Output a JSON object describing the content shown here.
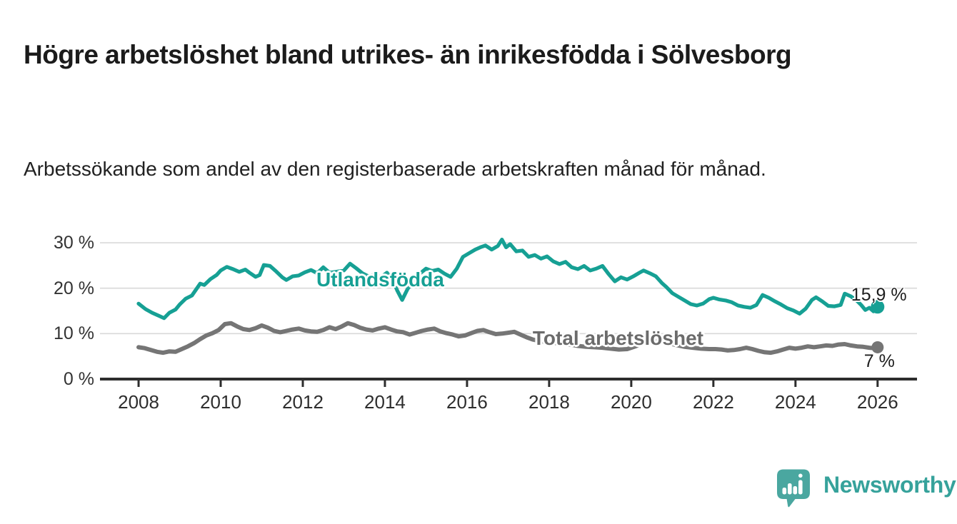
{
  "title": "Högre arbetslöshet bland utrikes- än inrikesfödda i Sölvesborg",
  "subtitle": "Arbetssökande som andel av den registerbaserade arbetskraften månad för månad.",
  "colors": {
    "teal_line": "#16A094",
    "gray_line": "#757575",
    "gridline": "#d9d9d9",
    "axis": "#2d2d2d",
    "text_dark": "#1d1d1d",
    "logo_teal": "#4AA7A0",
    "logo_text_teal": "#36A29B"
  },
  "logo": {
    "text": "Newsworthy",
    "icon": "newsworthy-speech-bubble-bar-chart-icon"
  },
  "chart_data": {
    "type": "line",
    "title": "Högre arbetslöshet bland utrikes- än inrikesfödda i Sölvesborg",
    "subtitle": "Arbetssökande som andel av den registerbaserade arbetskraften månad för månad.",
    "xlabel": "",
    "ylabel": "",
    "grid": true,
    "legend_position": "inline-annotations",
    "xlim": [
      2007.06,
      2026.96
    ],
    "ylim": [
      0,
      32
    ],
    "xticks": [
      2008,
      2010,
      2012,
      2014,
      2016,
      2018,
      2020,
      2022,
      2024,
      2026
    ],
    "yticks_values": [
      0,
      10,
      20,
      30
    ],
    "yticks_labels": [
      "0 %",
      "10 %",
      "20 %",
      "30 %"
    ],
    "annotations": [
      {
        "label": "Utlandsfödda",
        "x": 2012.33,
        "y": 21.7,
        "series": 0
      },
      {
        "label": "Total arbetslöshet",
        "x": 2017.6,
        "y": 8.8,
        "series": 1
      }
    ],
    "series": [
      {
        "name": "Utlandsfödda",
        "color": "#16A094",
        "end_label": "15,9 %",
        "end_value": 15.9,
        "points": [
          [
            2008.0,
            16.6
          ],
          [
            2008.17,
            15.4
          ],
          [
            2008.33,
            14.6
          ],
          [
            2008.5,
            13.9
          ],
          [
            2008.62,
            13.4
          ],
          [
            2008.75,
            14.6
          ],
          [
            2008.9,
            15.3
          ],
          [
            2009.0,
            16.4
          ],
          [
            2009.15,
            17.7
          ],
          [
            2009.3,
            18.4
          ],
          [
            2009.4,
            19.7
          ],
          [
            2009.5,
            21.0
          ],
          [
            2009.6,
            20.7
          ],
          [
            2009.75,
            22.0
          ],
          [
            2009.9,
            22.9
          ],
          [
            2010.0,
            23.9
          ],
          [
            2010.15,
            24.7
          ],
          [
            2010.3,
            24.2
          ],
          [
            2010.45,
            23.6
          ],
          [
            2010.6,
            24.1
          ],
          [
            2010.7,
            23.4
          ],
          [
            2010.85,
            22.5
          ],
          [
            2010.95,
            22.9
          ],
          [
            2011.05,
            25.1
          ],
          [
            2011.2,
            24.9
          ],
          [
            2011.35,
            23.7
          ],
          [
            2011.5,
            22.4
          ],
          [
            2011.6,
            21.8
          ],
          [
            2011.75,
            22.6
          ],
          [
            2011.9,
            22.8
          ],
          [
            2012.05,
            23.5
          ],
          [
            2012.2,
            24.0
          ],
          [
            2012.35,
            23.3
          ],
          [
            2012.5,
            24.6
          ],
          [
            2012.65,
            23.4
          ],
          [
            2012.8,
            23.6
          ],
          [
            2013.0,
            23.9
          ],
          [
            2013.15,
            25.4
          ],
          [
            2013.3,
            24.4
          ],
          [
            2013.45,
            23.3
          ],
          [
            2013.6,
            22.6
          ],
          [
            2013.75,
            23.0
          ],
          [
            2013.9,
            22.4
          ],
          [
            2014.05,
            23.4
          ],
          [
            2014.2,
            21.6
          ],
          [
            2014.3,
            19.5
          ],
          [
            2014.42,
            17.4
          ],
          [
            2014.55,
            19.8
          ],
          [
            2014.7,
            21.6
          ],
          [
            2014.85,
            23.2
          ],
          [
            2015.0,
            24.3
          ],
          [
            2015.15,
            23.8
          ],
          [
            2015.3,
            24.1
          ],
          [
            2015.45,
            23.2
          ],
          [
            2015.6,
            22.5
          ],
          [
            2015.75,
            24.3
          ],
          [
            2015.9,
            26.9
          ],
          [
            2016.05,
            27.7
          ],
          [
            2016.2,
            28.5
          ],
          [
            2016.35,
            29.1
          ],
          [
            2016.45,
            29.4
          ],
          [
            2016.6,
            28.5
          ],
          [
            2016.75,
            29.3
          ],
          [
            2016.85,
            30.7
          ],
          [
            2016.95,
            29.0
          ],
          [
            2017.05,
            29.7
          ],
          [
            2017.2,
            28.1
          ],
          [
            2017.35,
            28.3
          ],
          [
            2017.5,
            26.9
          ],
          [
            2017.65,
            27.3
          ],
          [
            2017.8,
            26.5
          ],
          [
            2017.95,
            27.0
          ],
          [
            2018.1,
            25.9
          ],
          [
            2018.25,
            25.3
          ],
          [
            2018.4,
            25.8
          ],
          [
            2018.55,
            24.6
          ],
          [
            2018.7,
            24.2
          ],
          [
            2018.85,
            24.9
          ],
          [
            2019.0,
            23.9
          ],
          [
            2019.15,
            24.3
          ],
          [
            2019.3,
            24.9
          ],
          [
            2019.45,
            23.1
          ],
          [
            2019.6,
            21.5
          ],
          [
            2019.75,
            22.4
          ],
          [
            2019.9,
            21.9
          ],
          [
            2020.05,
            22.6
          ],
          [
            2020.2,
            23.4
          ],
          [
            2020.3,
            23.9
          ],
          [
            2020.45,
            23.3
          ],
          [
            2020.6,
            22.6
          ],
          [
            2020.75,
            21.1
          ],
          [
            2020.85,
            20.3
          ],
          [
            2021.0,
            18.9
          ],
          [
            2021.15,
            18.1
          ],
          [
            2021.3,
            17.3
          ],
          [
            2021.45,
            16.5
          ],
          [
            2021.6,
            16.2
          ],
          [
            2021.75,
            16.6
          ],
          [
            2021.9,
            17.6
          ],
          [
            2022.0,
            17.9
          ],
          [
            2022.15,
            17.5
          ],
          [
            2022.3,
            17.3
          ],
          [
            2022.45,
            16.9
          ],
          [
            2022.6,
            16.2
          ],
          [
            2022.75,
            15.9
          ],
          [
            2022.9,
            15.7
          ],
          [
            2023.05,
            16.3
          ],
          [
            2023.2,
            18.5
          ],
          [
            2023.35,
            17.9
          ],
          [
            2023.5,
            17.1
          ],
          [
            2023.65,
            16.4
          ],
          [
            2023.8,
            15.6
          ],
          [
            2023.95,
            15.1
          ],
          [
            2024.1,
            14.4
          ],
          [
            2024.25,
            15.5
          ],
          [
            2024.4,
            17.4
          ],
          [
            2024.5,
            18.0
          ],
          [
            2024.65,
            17.1
          ],
          [
            2024.8,
            16.1
          ],
          [
            2024.95,
            16.0
          ],
          [
            2025.1,
            16.3
          ],
          [
            2025.2,
            18.8
          ],
          [
            2025.35,
            18.2
          ],
          [
            2025.5,
            17.2
          ],
          [
            2025.6,
            16.3
          ],
          [
            2025.7,
            15.2
          ],
          [
            2025.8,
            15.7
          ],
          [
            2025.9,
            14.9
          ],
          [
            2026.0,
            15.9
          ]
        ]
      },
      {
        "name": "Total arbetslöshet",
        "color": "#757575",
        "end_label": "7 %",
        "end_value": 7,
        "points": [
          [
            2008.0,
            7.0
          ],
          [
            2008.15,
            6.8
          ],
          [
            2008.3,
            6.4
          ],
          [
            2008.45,
            6.0
          ],
          [
            2008.6,
            5.8
          ],
          [
            2008.75,
            6.1
          ],
          [
            2008.9,
            6.0
          ],
          [
            2009.05,
            6.6
          ],
          [
            2009.2,
            7.2
          ],
          [
            2009.35,
            7.9
          ],
          [
            2009.5,
            8.8
          ],
          [
            2009.65,
            9.6
          ],
          [
            2009.8,
            10.1
          ],
          [
            2009.95,
            10.8
          ],
          [
            2010.1,
            12.1
          ],
          [
            2010.25,
            12.3
          ],
          [
            2010.4,
            11.6
          ],
          [
            2010.55,
            11.0
          ],
          [
            2010.7,
            10.8
          ],
          [
            2010.85,
            11.2
          ],
          [
            2011.0,
            11.8
          ],
          [
            2011.15,
            11.3
          ],
          [
            2011.3,
            10.6
          ],
          [
            2011.45,
            10.3
          ],
          [
            2011.6,
            10.6
          ],
          [
            2011.75,
            10.9
          ],
          [
            2011.9,
            11.1
          ],
          [
            2012.05,
            10.7
          ],
          [
            2012.2,
            10.5
          ],
          [
            2012.35,
            10.4
          ],
          [
            2012.5,
            10.8
          ],
          [
            2012.65,
            11.4
          ],
          [
            2012.8,
            11.0
          ],
          [
            2012.95,
            11.6
          ],
          [
            2013.1,
            12.3
          ],
          [
            2013.25,
            11.9
          ],
          [
            2013.4,
            11.3
          ],
          [
            2013.55,
            10.9
          ],
          [
            2013.7,
            10.7
          ],
          [
            2013.85,
            11.1
          ],
          [
            2014.0,
            11.4
          ],
          [
            2014.15,
            10.9
          ],
          [
            2014.3,
            10.5
          ],
          [
            2014.45,
            10.3
          ],
          [
            2014.6,
            9.8
          ],
          [
            2014.75,
            10.2
          ],
          [
            2014.9,
            10.6
          ],
          [
            2015.05,
            10.9
          ],
          [
            2015.2,
            11.1
          ],
          [
            2015.35,
            10.5
          ],
          [
            2015.5,
            10.1
          ],
          [
            2015.65,
            9.8
          ],
          [
            2015.8,
            9.4
          ],
          [
            2015.95,
            9.6
          ],
          [
            2016.1,
            10.1
          ],
          [
            2016.25,
            10.6
          ],
          [
            2016.4,
            10.8
          ],
          [
            2016.55,
            10.3
          ],
          [
            2016.7,
            9.9
          ],
          [
            2016.85,
            10.0
          ],
          [
            2017.0,
            10.2
          ],
          [
            2017.15,
            10.4
          ],
          [
            2017.3,
            9.8
          ],
          [
            2017.45,
            9.2
          ],
          [
            2017.6,
            8.7
          ],
          [
            2017.75,
            8.4
          ],
          [
            2017.9,
            8.2
          ],
          [
            2018.1,
            8.0
          ],
          [
            2018.3,
            7.8
          ],
          [
            2018.5,
            7.6
          ],
          [
            2018.7,
            7.3
          ],
          [
            2018.9,
            7.1
          ],
          [
            2019.1,
            7.0
          ],
          [
            2019.3,
            6.9
          ],
          [
            2019.5,
            6.7
          ],
          [
            2019.7,
            6.5
          ],
          [
            2019.9,
            6.6
          ],
          [
            2020.1,
            7.2
          ],
          [
            2020.3,
            8.0
          ],
          [
            2020.5,
            8.5
          ],
          [
            2020.7,
            8.3
          ],
          [
            2020.9,
            7.9
          ],
          [
            2021.1,
            7.5
          ],
          [
            2021.3,
            7.1
          ],
          [
            2021.5,
            6.9
          ],
          [
            2021.7,
            6.7
          ],
          [
            2021.9,
            6.6
          ],
          [
            2022.05,
            6.6
          ],
          [
            2022.2,
            6.5
          ],
          [
            2022.35,
            6.3
          ],
          [
            2022.5,
            6.4
          ],
          [
            2022.65,
            6.6
          ],
          [
            2022.8,
            6.9
          ],
          [
            2022.95,
            6.6
          ],
          [
            2023.1,
            6.2
          ],
          [
            2023.25,
            5.9
          ],
          [
            2023.4,
            5.8
          ],
          [
            2023.55,
            6.1
          ],
          [
            2023.7,
            6.5
          ],
          [
            2023.85,
            6.9
          ],
          [
            2024.0,
            6.7
          ],
          [
            2024.15,
            6.9
          ],
          [
            2024.3,
            7.2
          ],
          [
            2024.45,
            7.0
          ],
          [
            2024.6,
            7.2
          ],
          [
            2024.75,
            7.4
          ],
          [
            2024.9,
            7.3
          ],
          [
            2025.05,
            7.6
          ],
          [
            2025.2,
            7.7
          ],
          [
            2025.35,
            7.4
          ],
          [
            2025.5,
            7.2
          ],
          [
            2025.65,
            7.1
          ],
          [
            2025.8,
            6.9
          ],
          [
            2025.9,
            6.8
          ],
          [
            2026.0,
            7.0
          ]
        ]
      }
    ]
  }
}
